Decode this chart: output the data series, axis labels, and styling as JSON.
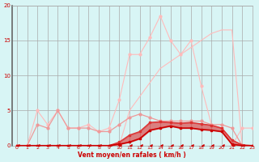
{
  "xlabel": "Vent moyen/en rafales ( km/h )",
  "x": [
    0,
    1,
    2,
    3,
    4,
    5,
    6,
    7,
    8,
    9,
    10,
    11,
    12,
    13,
    14,
    15,
    16,
    17,
    18,
    19,
    20,
    21,
    22,
    23
  ],
  "line_lightest": [
    0,
    0,
    5,
    3,
    5,
    2.5,
    2.5,
    3,
    2,
    2.5,
    6.5,
    13,
    13,
    15.5,
    18.5,
    15,
    13,
    15,
    8.5,
    3,
    2.5,
    0,
    2.5,
    2.5
  ],
  "line_light_diag": [
    0,
    0,
    0,
    0,
    0,
    0,
    0,
    0,
    0,
    0,
    0,
    5,
    7,
    9,
    11,
    12,
    13,
    14,
    15,
    16,
    16.5,
    16.5,
    0,
    0
  ],
  "line_medium": [
    0,
    0,
    3,
    2.5,
    5,
    2.5,
    2.5,
    2.5,
    2,
    2,
    3,
    4,
    4.5,
    4,
    3.5,
    3.5,
    3.5,
    3.5,
    3.5,
    3,
    3,
    2.5,
    0,
    0
  ],
  "line_dark_fill_top": [
    0,
    0,
    0,
    0,
    0,
    0,
    0,
    0,
    0,
    0,
    0.5,
    1.5,
    2,
    3.3,
    3.4,
    3.3,
    3.2,
    3.3,
    3.1,
    2.9,
    2.5,
    0.8,
    0.1,
    0
  ],
  "line_dark_base": [
    0,
    0,
    0,
    0,
    0,
    0,
    0,
    0,
    0,
    0,
    0.2,
    0.5,
    1.0,
    2.2,
    2.5,
    2.8,
    2.5,
    2.5,
    2.3,
    2.2,
    2.0,
    0.2,
    0,
    0
  ],
  "line_darkest": [
    0,
    0,
    0,
    0,
    0,
    0,
    0,
    0,
    0,
    0,
    0,
    0,
    0,
    0,
    0,
    0,
    0,
    0,
    0,
    0,
    0,
    0,
    0,
    0
  ],
  "ylim": [
    0,
    20
  ],
  "xlim": [
    -0.5,
    23
  ],
  "yticks": [
    0,
    5,
    10,
    15,
    20
  ],
  "xticks": [
    0,
    1,
    2,
    3,
    4,
    5,
    6,
    7,
    8,
    9,
    10,
    11,
    12,
    13,
    14,
    15,
    16,
    17,
    18,
    19,
    20,
    21,
    22,
    23
  ],
  "bg_color": "#d8f5f5",
  "grid_color": "#aaaaaa",
  "color_darkest_red": "#cc0000",
  "color_dark_red": "#dd3333",
  "color_medium_red": "#ee7777",
  "color_light_red": "#ee9999",
  "color_lightest_red": "#ffbbbb"
}
